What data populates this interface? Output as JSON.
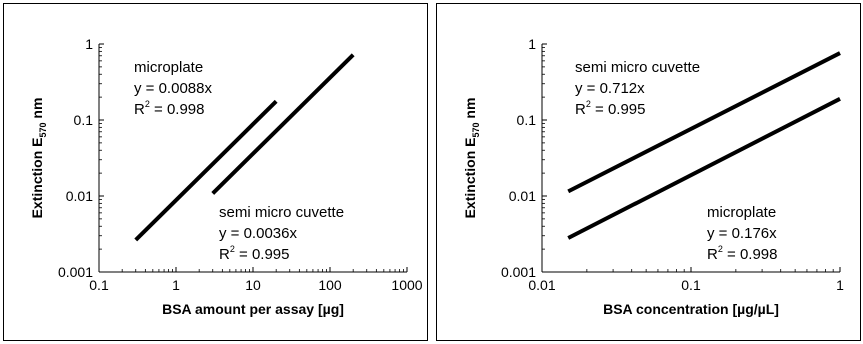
{
  "chart_data": [
    {
      "type": "line",
      "title": "",
      "xlabel": "BSA amount per assay [µg]",
      "ylabel_main": "Extinction E",
      "ylabel_sub": "570",
      "ylabel_unit": "nm",
      "xscale": "log",
      "yscale": "log",
      "xlim": [
        0.1,
        1000
      ],
      "ylim": [
        0.001,
        1
      ],
      "xticks": [
        0.1,
        1,
        10,
        100,
        1000
      ],
      "xtick_labels": [
        "0.1",
        "1",
        "10",
        "100",
        "1000"
      ],
      "yticks": [
        0.001,
        0.01,
        0.1,
        1
      ],
      "ytick_labels": [
        "0.001",
        "0.01",
        "0.1",
        "1"
      ],
      "grid": false,
      "series": [
        {
          "name": "microplate",
          "x": [
            0.3,
            20
          ],
          "y": [
            0.00264,
            0.176
          ]
        },
        {
          "name": "semi micro cuvette",
          "x": [
            3,
            200
          ],
          "y": [
            0.0108,
            0.72
          ]
        }
      ],
      "annotations": [
        {
          "lines": [
            "microplate",
            "y = 0.0088x"
          ],
          "r2_value": "0.998"
        },
        {
          "lines": [
            "semi micro cuvette",
            "y = 0.0036x"
          ],
          "r2_value": "0.995"
        }
      ]
    },
    {
      "type": "line",
      "title": "",
      "xlabel": "BSA concentration [µg/µL]",
      "ylabel_main": "Extinction E",
      "ylabel_sub": "570",
      "ylabel_unit": "nm",
      "xscale": "log",
      "yscale": "log",
      "xlim": [
        0.01,
        1
      ],
      "ylim": [
        0.001,
        1
      ],
      "xticks": [
        0.01,
        0.1,
        1
      ],
      "xtick_labels": [
        "0.01",
        "0.1",
        "1"
      ],
      "yticks": [
        0.001,
        0.01,
        0.1,
        1
      ],
      "ytick_labels": [
        "0.001",
        "0.01",
        "0.1",
        "1"
      ],
      "grid": false,
      "series": [
        {
          "name": "semi micro cuvette",
          "x": [
            0.015,
            1
          ],
          "y": [
            0.0115,
            0.76
          ]
        },
        {
          "name": "microplate",
          "x": [
            0.015,
            1
          ],
          "y": [
            0.0028,
            0.19
          ]
        }
      ],
      "annotations": [
        {
          "lines": [
            "semi micro cuvette",
            "y = 0.712x"
          ],
          "r2_value": "0.995"
        },
        {
          "lines": [
            "microplate",
            "y = 0.176x"
          ],
          "r2_value": "0.998"
        }
      ]
    }
  ],
  "colors": {
    "line": "#000000",
    "frame": "#000000"
  }
}
